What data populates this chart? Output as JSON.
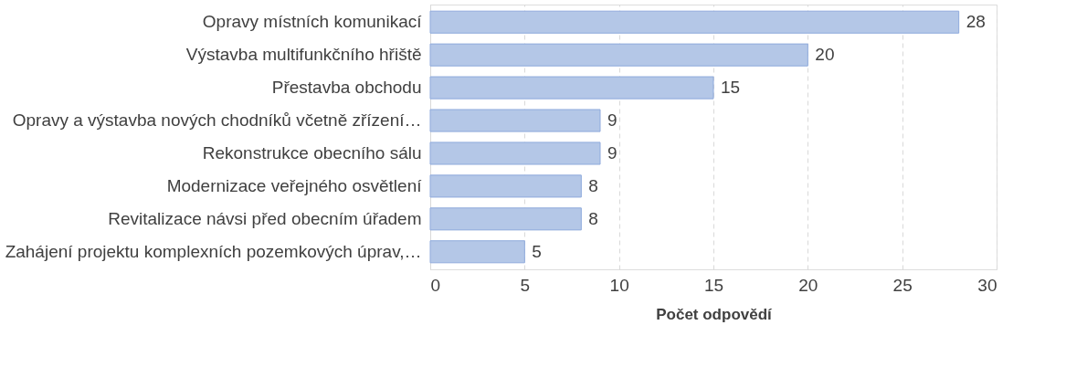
{
  "chart_data": {
    "type": "bar",
    "orientation": "horizontal",
    "xlabel": "Počet odpovědí",
    "categories": [
      "Opravy místních komunikací",
      "Výstavba multifunkčního hřiště",
      "Přestavba obchodu",
      "Opravy a výstavba nových chodníků včetně zřízení…",
      "Rekonstrukce obecního sálu",
      "Modernizace veřejného osvětlení",
      "Revitalizace návsi před obecním úřadem",
      "Zahájení projektu komplexních pozemkových úprav,…"
    ],
    "values": [
      28,
      20,
      15,
      9,
      9,
      8,
      8,
      5
    ],
    "color": "#b4c7e7",
    "xlim": [
      0,
      30
    ],
    "xticks": [
      0,
      5,
      10,
      15,
      20,
      25,
      30
    ],
    "grid": "x",
    "data_labels": true
  }
}
